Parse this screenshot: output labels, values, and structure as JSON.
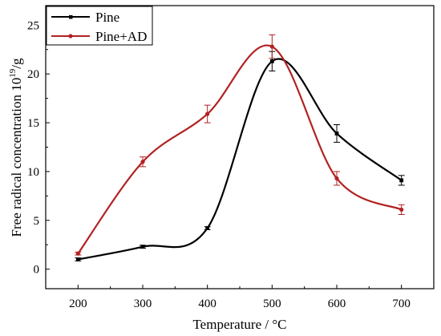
{
  "chart_data": {
    "type": "line",
    "title": "",
    "xlabel": "Temperature / °C",
    "ylabel": "Free radical concentration 10^19/g",
    "ylabel_main": "Free radical concentration 10",
    "ylabel_exp": "19",
    "ylabel_unit": "/g",
    "xlim": [
      150,
      750
    ],
    "ylim": [
      -2,
      27
    ],
    "xticks": [
      200,
      300,
      400,
      500,
      600,
      700
    ],
    "yticks": [
      0,
      5,
      10,
      15,
      20,
      25
    ],
    "legend_position": "top-left",
    "grid": false,
    "series": [
      {
        "name": "Pine",
        "color": "#000000",
        "marker": "square",
        "x": [
          200,
          300,
          400,
          500,
          600,
          700
        ],
        "y": [
          1.0,
          2.3,
          4.2,
          21.3,
          13.9,
          9.1
        ],
        "error": [
          0.15,
          0.15,
          0.15,
          1.0,
          0.9,
          0.5
        ]
      },
      {
        "name": "Pine+AD",
        "color": "#b22222",
        "marker": "circle",
        "x": [
          200,
          300,
          400,
          500,
          600,
          700
        ],
        "y": [
          1.6,
          11.0,
          15.9,
          22.8,
          9.3,
          6.1
        ],
        "error": [
          0.15,
          0.5,
          0.9,
          1.2,
          0.7,
          0.5
        ]
      }
    ]
  }
}
